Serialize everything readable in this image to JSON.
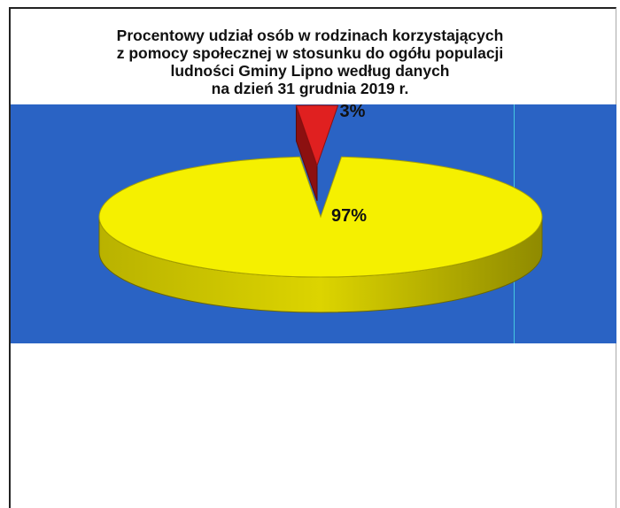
{
  "chart_data": {
    "type": "pie",
    "title_lines": [
      "Procentowy udział osób w rodzinach korzystających",
      "z pomocy społecznej w stosunku do ogółu populacji",
      "ludności Gminy Lipno według danych",
      "na dzień 31 grudnia 2019 r."
    ],
    "slices": [
      {
        "label": "97%",
        "value": 97,
        "color": "#f5f000"
      },
      {
        "label": "3%",
        "value": 3,
        "color": "#e02020"
      }
    ],
    "background_color": "#2a63c4",
    "style": "3d-exploded"
  }
}
